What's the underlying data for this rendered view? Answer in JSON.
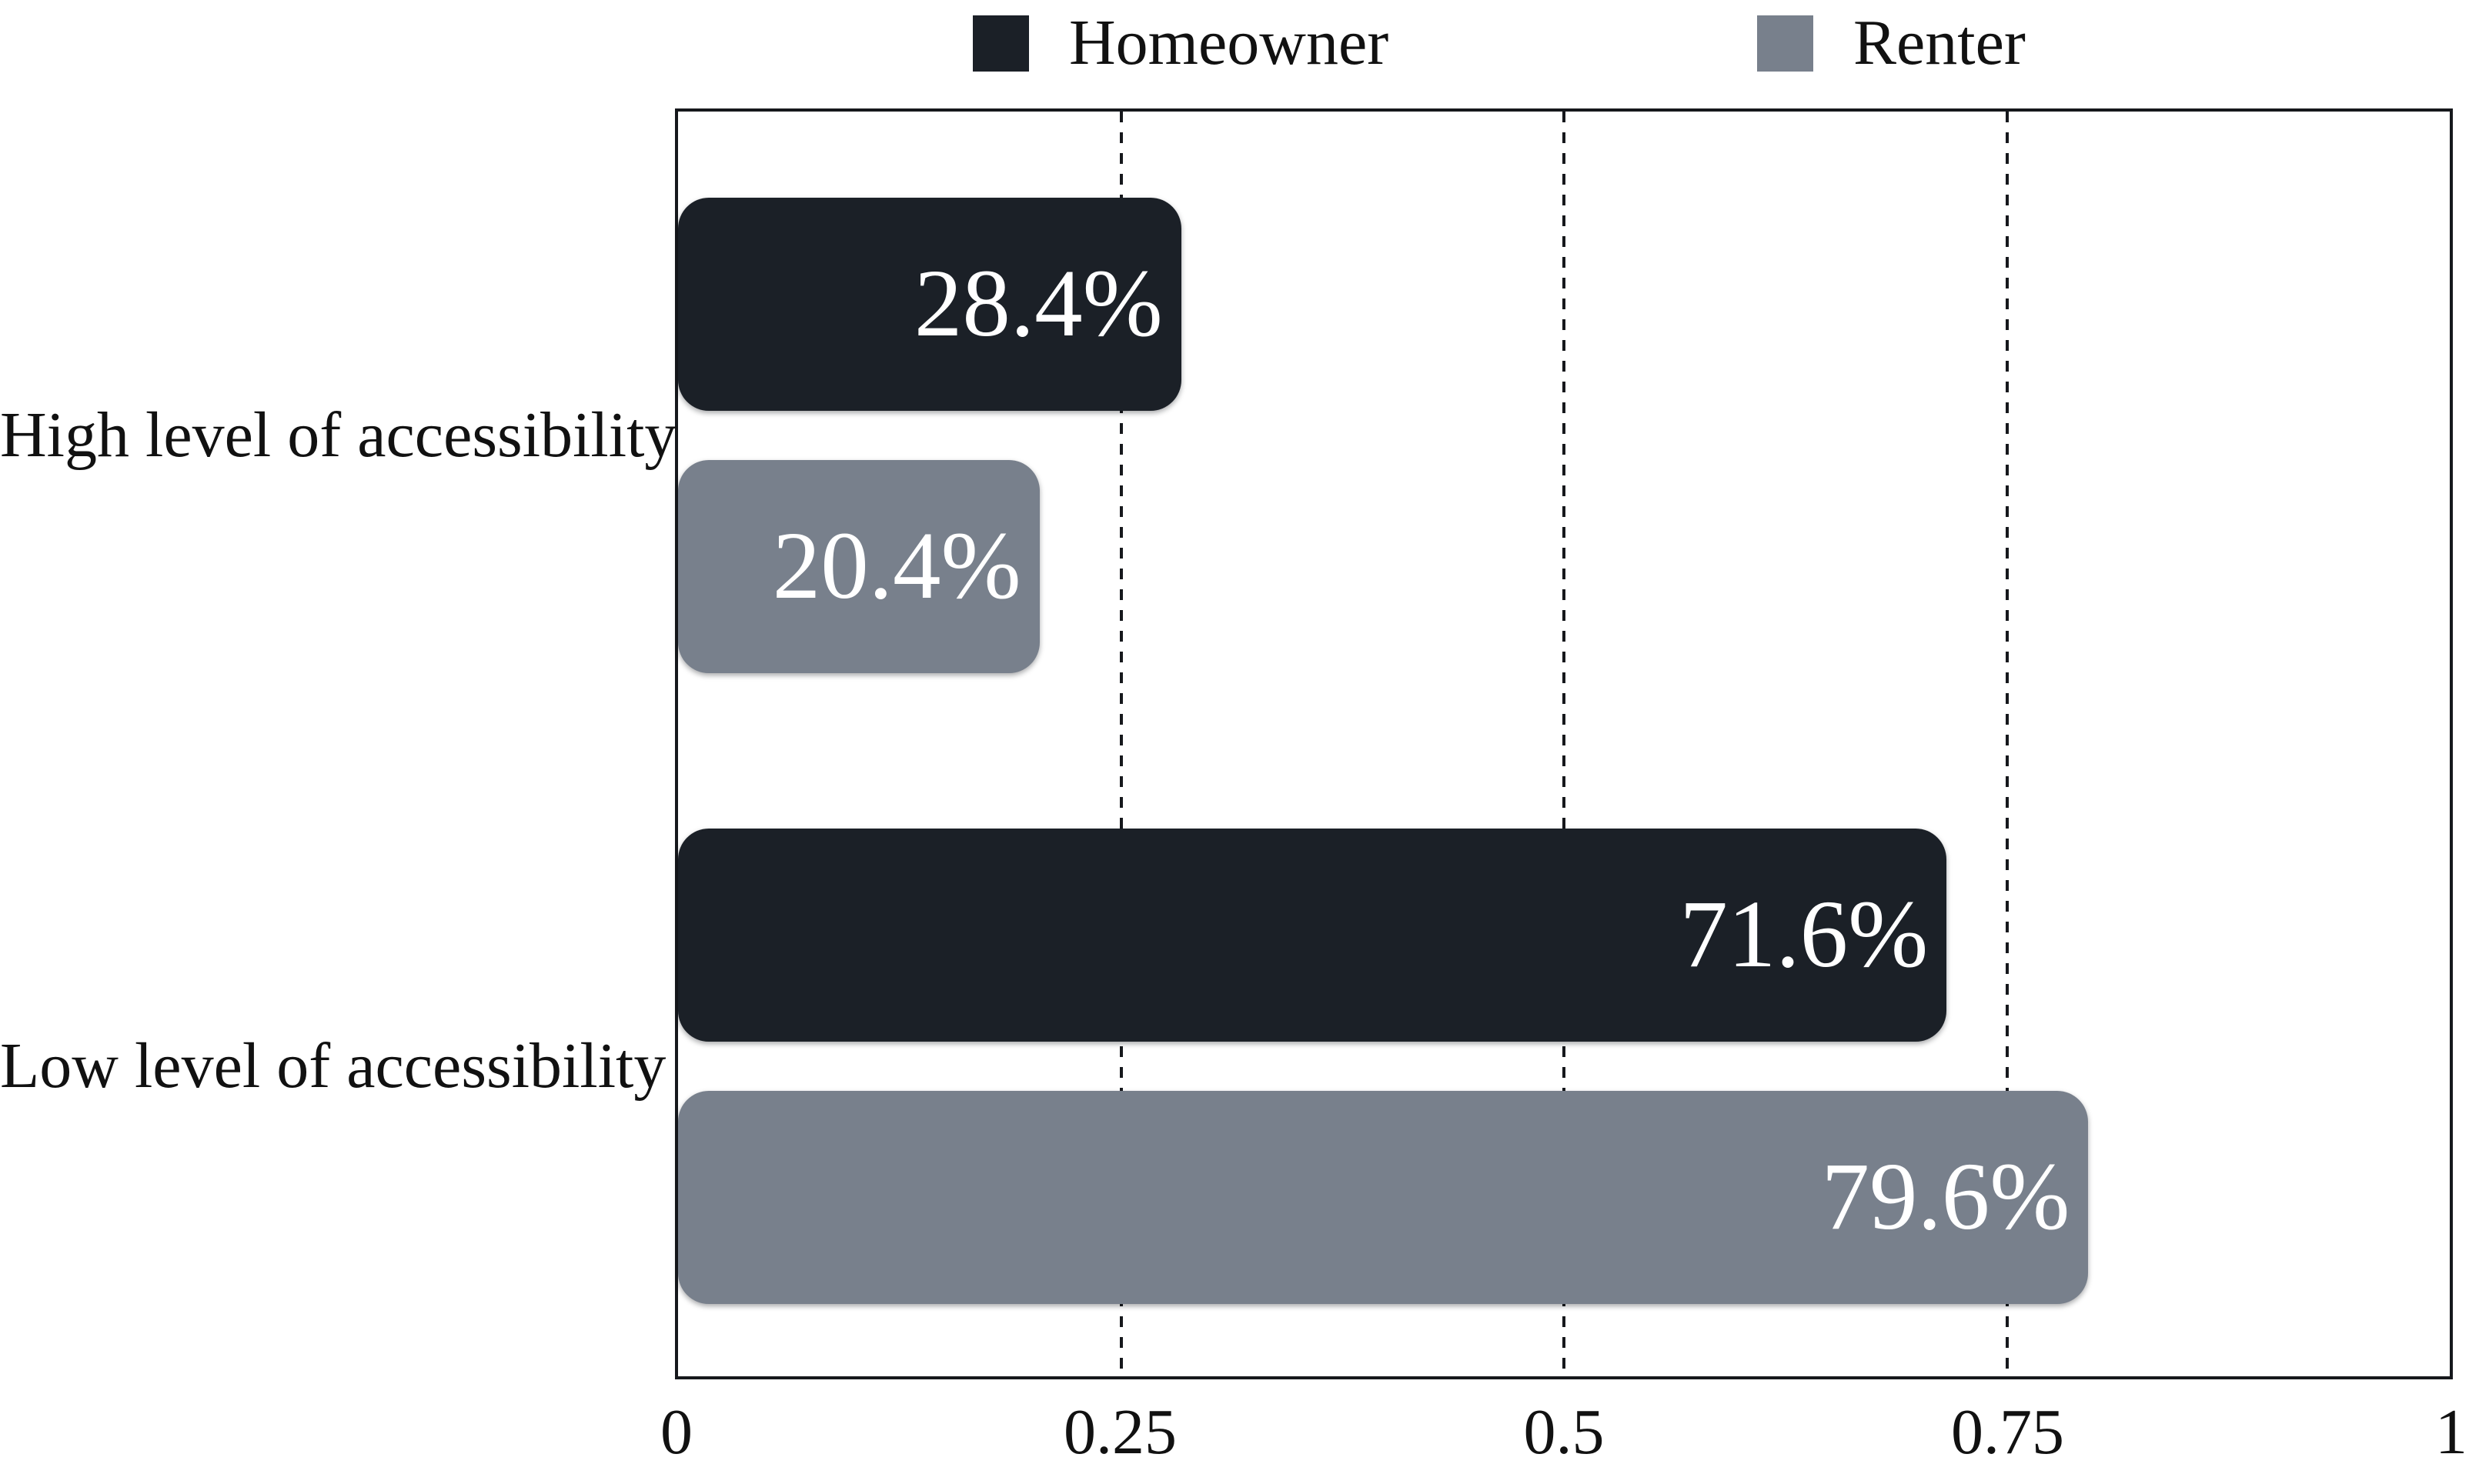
{
  "figure": {
    "background": "#ffffff",
    "line_color": "#16181c",
    "text_color": "#111111",
    "bar_value_color": "#ffffff"
  },
  "legend": {
    "position": "top",
    "items": [
      {
        "label": "Homeowner",
        "color": "#1b2027"
      },
      {
        "label": "Renter",
        "color": "#78808c"
      }
    ]
  },
  "chart_data": {
    "type": "bar",
    "orientation": "horizontal",
    "title": "",
    "xlabel": "",
    "ylabel": "",
    "categories": [
      "High level of accessibility",
      "Low level of accessibility"
    ],
    "series": [
      {
        "name": "Homeowner",
        "color": "#1b2027",
        "values": [
          0.284,
          0.716
        ],
        "value_labels": [
          "28.4%",
          "71.6%"
        ]
      },
      {
        "name": "Renter",
        "color": "#78808c",
        "values": [
          0.204,
          0.796
        ],
        "value_labels": [
          "20.4%",
          "79.6%"
        ]
      }
    ],
    "xlim": [
      0,
      1
    ],
    "x_ticks": [
      {
        "label": "0",
        "value": 0
      },
      {
        "label": "0.25",
        "value": 0.25
      },
      {
        "label": "0.5",
        "value": 0.5
      },
      {
        "label": "0.75",
        "value": 0.75
      },
      {
        "label": "1",
        "value": 1
      }
    ],
    "gridlines": {
      "style": "dashed",
      "orientation": "vertical",
      "positions": [
        0.25,
        0.5,
        0.75
      ]
    },
    "legend_position": "top"
  }
}
